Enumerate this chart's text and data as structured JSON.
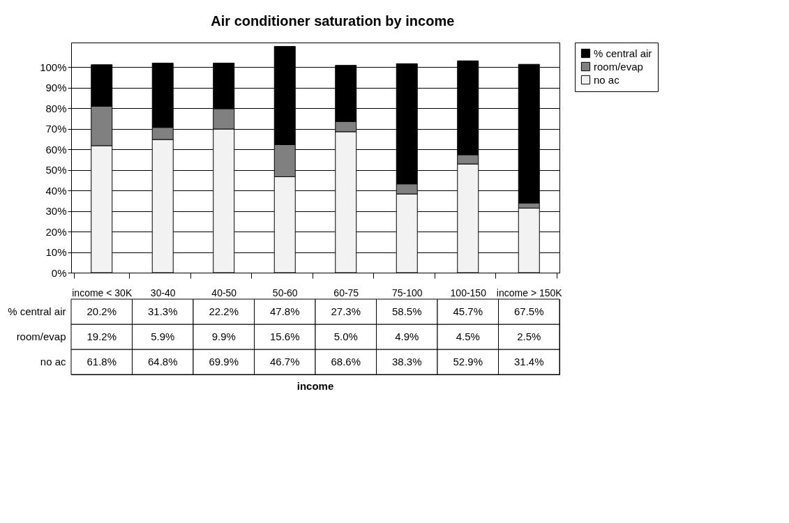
{
  "chart_data": {
    "type": "bar",
    "title": "Air conditioner saturation by income",
    "annotations": [
      "income"
    ],
    "categories": [
      "income < 30K",
      "30-40",
      "40-50",
      "50-60",
      "60-75",
      "75-100",
      "100-150",
      "income > 150K"
    ],
    "stacked": true,
    "legend": "right",
    "grid": "y",
    "ylim": [
      0,
      112
    ],
    "yticks": [
      {
        "value": 0,
        "label": "0%"
      },
      {
        "value": 10,
        "label": "10%"
      },
      {
        "value": 20,
        "label": "20%"
      },
      {
        "value": 30,
        "label": "30%"
      },
      {
        "value": 40,
        "label": "40%"
      },
      {
        "value": 50,
        "label": "50%"
      },
      {
        "value": 60,
        "label": "60%"
      },
      {
        "value": 70,
        "label": "70%"
      },
      {
        "value": 80,
        "label": "80%"
      },
      {
        "value": 90,
        "label": "90%"
      },
      {
        "value": 100,
        "label": "100%"
      }
    ],
    "series": [
      {
        "name": "no ac",
        "color": "#f2f2f2",
        "values": [
          61.8,
          64.8,
          69.9,
          46.7,
          68.6,
          38.3,
          52.9,
          31.4
        ],
        "value_labels": [
          "61.8%",
          "64.8%",
          "69.9%",
          "46.7%",
          "68.6%",
          "38.3%",
          "52.9%",
          "31.4%"
        ]
      },
      {
        "name": "room/evap",
        "color": "#808080",
        "values": [
          19.2,
          5.9,
          9.9,
          15.6,
          5.0,
          4.9,
          4.5,
          2.5
        ],
        "value_labels": [
          "19.2%",
          "5.9%",
          "9.9%",
          "15.6%",
          "5.0%",
          "4.9%",
          "4.5%",
          "2.5%"
        ]
      },
      {
        "name": "% central air",
        "color": "#000000",
        "values": [
          20.2,
          31.3,
          22.2,
          47.8,
          27.3,
          58.5,
          45.7,
          67.5
        ],
        "value_labels": [
          "20.2%",
          "31.3%",
          "22.2%",
          "47.8%",
          "27.3%",
          "58.5%",
          "45.7%",
          "67.5%"
        ]
      }
    ]
  }
}
